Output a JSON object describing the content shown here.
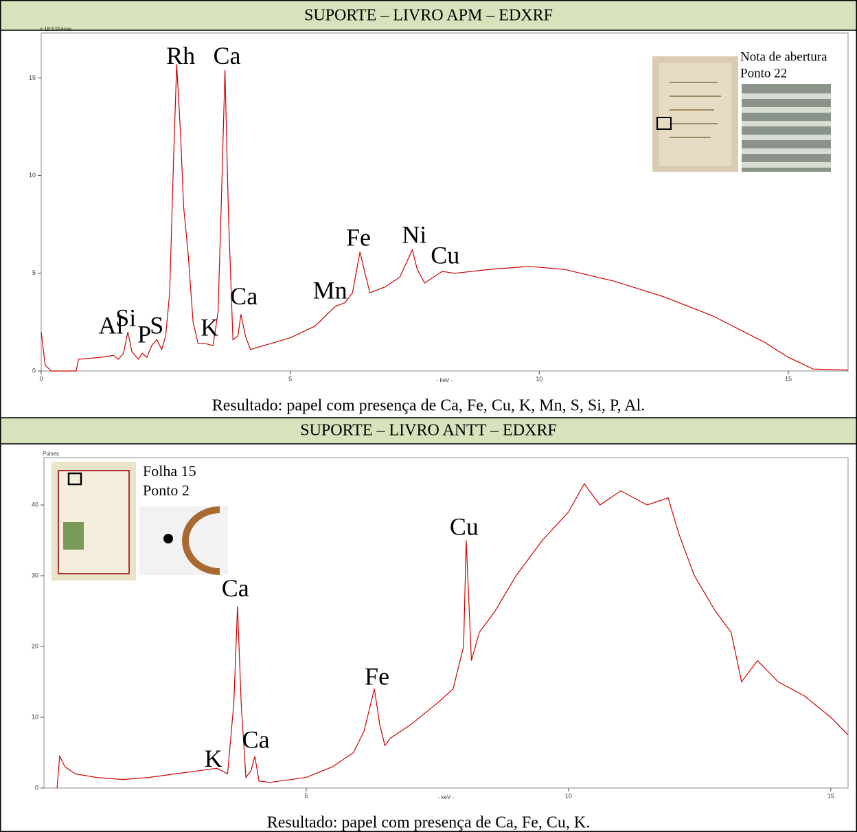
{
  "chart_data": [
    {
      "type": "line",
      "title": "SUPORTE – LIVRO APM – EDXRF",
      "caption": "Resultado: papel com presença de Ca, Fe, Cu, K, Mn, S, Si, P, Al.",
      "inset_labels": [
        "Nota de abertura",
        "Ponto 22"
      ],
      "ylabel": "x 1E3 Pulses",
      "xlabel": "- keV -",
      "xlim": [
        0,
        16.2
      ],
      "ylim": [
        0,
        17.3
      ],
      "xticks": [
        0,
        5,
        10,
        15
      ],
      "yticks": [
        0,
        5,
        10,
        15
      ],
      "x": [
        0,
        0.08,
        0.2,
        0.7,
        0.75,
        1.2,
        1.45,
        1.55,
        1.65,
        1.74,
        1.82,
        1.95,
        2.03,
        2.12,
        2.22,
        2.32,
        2.42,
        2.5,
        2.58,
        2.66,
        2.72,
        2.8,
        2.86,
        2.95,
        3.05,
        3.15,
        3.3,
        3.45,
        3.55,
        3.62,
        3.69,
        3.76,
        3.85,
        3.95,
        4.01,
        4.1,
        4.2,
        4.6,
        5.0,
        5.5,
        5.9,
        6.1,
        6.25,
        6.4,
        6.5,
        6.6,
        6.9,
        7.2,
        7.45,
        7.55,
        7.7,
        8.05,
        8.3,
        9.0,
        9.8,
        10.5,
        11.5,
        12.5,
        13.5,
        14.5,
        15.0,
        15.5,
        16.2
      ],
      "series": [
        {
          "color": "#cc0000",
          "values": [
            2.0,
            0.3,
            0,
            0,
            0.6,
            0.7,
            0.8,
            0.6,
            0.9,
            2.0,
            1.0,
            0.6,
            0.9,
            0.7,
            1.3,
            1.6,
            1.1,
            1.8,
            4.0,
            11,
            15.7,
            12,
            8.4,
            6.0,
            2.5,
            1.4,
            1.4,
            1.3,
            3.0,
            9,
            15.4,
            8,
            1.6,
            1.8,
            2.9,
            1.8,
            1.1,
            1.4,
            1.7,
            2.3,
            3.3,
            3.5,
            4.0,
            6.1,
            5.0,
            4.0,
            4.3,
            4.8,
            6.2,
            5.2,
            4.5,
            5.1,
            5.0,
            5.2,
            5.35,
            5.2,
            4.6,
            3.8,
            2.8,
            1.5,
            0.7,
            0.1,
            0.05
          ]
        }
      ],
      "annotations": [
        {
          "text": "Rh",
          "x": 2.8,
          "y": 16.0
        },
        {
          "text": "Ca",
          "x": 3.73,
          "y": 16.0
        },
        {
          "text": "Si",
          "x": 1.7,
          "y": 2.6
        },
        {
          "text": "Al",
          "x": 1.4,
          "y": 2.2
        },
        {
          "text": "P",
          "x": 2.07,
          "y": 1.75
        },
        {
          "text": "S",
          "x": 2.32,
          "y": 2.2
        },
        {
          "text": "K",
          "x": 3.38,
          "y": 2.1
        },
        {
          "text": "Ca",
          "x": 4.07,
          "y": 3.7
        },
        {
          "text": "Mn",
          "x": 5.8,
          "y": 4.0
        },
        {
          "text": "Fe",
          "x": 6.37,
          "y": 6.7
        },
        {
          "text": "Ni",
          "x": 7.49,
          "y": 6.85
        },
        {
          "text": "Cu",
          "x": 8.11,
          "y": 5.8
        }
      ]
    },
    {
      "type": "line",
      "title": "SUPORTE – LIVRO ANTT – EDXRF",
      "caption": "Resultado: papel com presença de Ca, Fe, Cu, K.",
      "inset_labels": [
        "Folha 15",
        "Ponto 2"
      ],
      "ylabel": "Pulses",
      "xlabel": "- keV -",
      "xlim": [
        0,
        15.33
      ],
      "ylim": [
        0,
        46.7
      ],
      "xticks": [
        5,
        10,
        15
      ],
      "yticks": [
        0,
        10,
        20,
        30,
        40
      ],
      "x": [
        0.25,
        0.3,
        0.4,
        0.6,
        1,
        1.5,
        2,
        2.5,
        3,
        3.3,
        3.5,
        3.62,
        3.69,
        3.76,
        3.85,
        3.95,
        4.02,
        4.1,
        4.3,
        5,
        5.5,
        5.9,
        6.1,
        6.3,
        6.4,
        6.5,
        6.6,
        7,
        7.5,
        7.8,
        8.0,
        8.05,
        8.15,
        8.3,
        8.6,
        9,
        9.5,
        10,
        10.3,
        10.6,
        11,
        11.5,
        11.9,
        12.1,
        12.4,
        12.8,
        13.1,
        13.3,
        13.6,
        14,
        14.5,
        15,
        15.33
      ],
      "series": [
        {
          "color": "#cc0000",
          "values": [
            0,
            4.5,
            3,
            2,
            1.5,
            1.2,
            1.5,
            2,
            2.5,
            2.8,
            2,
            12,
            25.7,
            12,
            1.5,
            2.5,
            4.5,
            1,
            0.8,
            1.5,
            3,
            5,
            8,
            14,
            9,
            6,
            7,
            9,
            12,
            14,
            20,
            35,
            18,
            22,
            25,
            30,
            35,
            39,
            43,
            40,
            42,
            40,
            41,
            36,
            30,
            25,
            22,
            15,
            18,
            15,
            13,
            10,
            7.5
          ]
        }
      ],
      "annotations": [
        {
          "text": "Cu",
          "x": 8.01,
          "y": 36.6
        },
        {
          "text": "Ca",
          "x": 3.65,
          "y": 27.9
        },
        {
          "text": "Fe",
          "x": 6.35,
          "y": 15.4
        },
        {
          "text": "Ca",
          "x": 4.04,
          "y": 6.5
        },
        {
          "text": "K",
          "x": 3.23,
          "y": 3.8
        }
      ]
    }
  ]
}
